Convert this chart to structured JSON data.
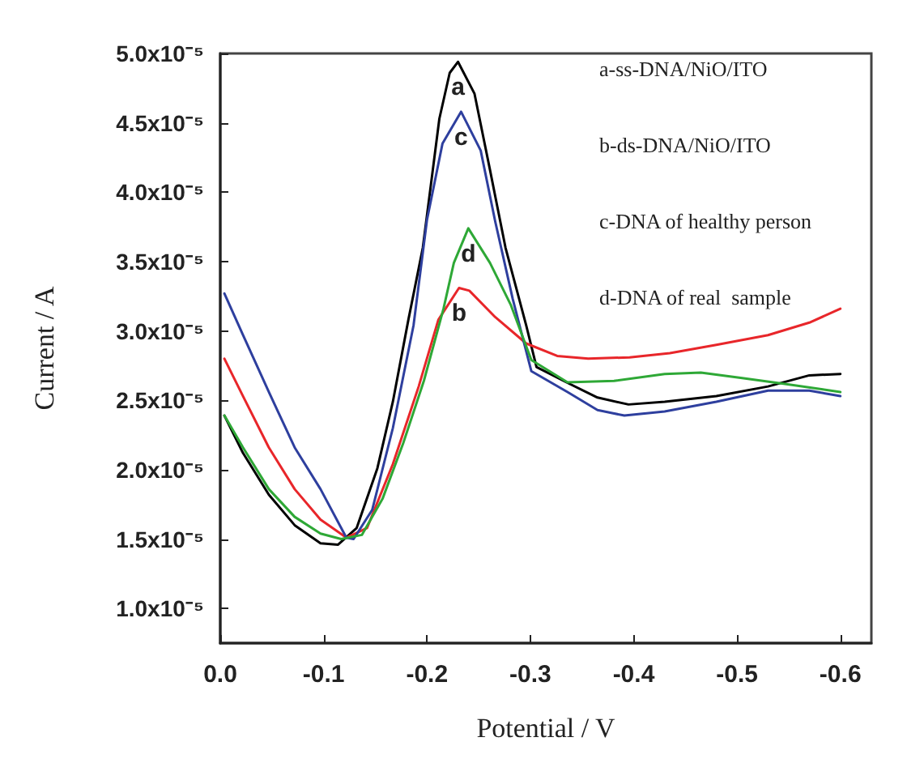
{
  "chart_data": {
    "type": "line",
    "xlabel": "Potential / V",
    "ylabel": "Current / A",
    "xlim": [
      0,
      -0.63
    ],
    "ylim": [
      7.5e-06,
      5e-05
    ],
    "xticks": [
      {
        "value": 0,
        "label": "0.0"
      },
      -0.1,
      -0.2,
      -0.3,
      -0.4,
      -0.5,
      -0.6
    ],
    "yticks": [
      {
        "value": 1e-05,
        "label": "1.0x10⁻⁵"
      },
      {
        "value": 1.5e-05,
        "label": "1.5x10⁻⁵"
      },
      {
        "value": 2e-05,
        "label": "2.0x10⁻⁵"
      },
      {
        "value": 2.5e-05,
        "label": "2.5x10⁻⁵"
      },
      {
        "value": 3e-05,
        "label": "3.0x10⁻⁵"
      },
      {
        "value": 3.5e-05,
        "label": "3.5x10⁻⁵"
      },
      {
        "value": 4e-05,
        "label": "4.0x10⁻⁵"
      },
      {
        "value": 4.5e-05,
        "label": "4.5x10⁻⁵"
      },
      {
        "value": 5e-05,
        "label": "5.0x10⁻⁵"
      }
    ],
    "grid": false,
    "marker": "none",
    "line_style": "solid",
    "series": [
      {
        "color": "#000000",
        "x": [
          -0.004,
          -0.022,
          -0.047,
          -0.072,
          -0.097,
          -0.114,
          -0.132,
          -0.152,
          -0.167,
          -0.182,
          -0.196,
          -0.212,
          -0.222,
          -0.23,
          -0.246,
          -0.261,
          -0.276,
          -0.296,
          -0.306,
          -0.335,
          -0.365,
          -0.395,
          -0.43,
          -0.48,
          -0.53,
          -0.57,
          -0.6
        ],
        "values": [
          2.39e-05,
          2.12e-05,
          1.82e-05,
          1.6e-05,
          1.47e-05,
          1.46e-05,
          1.58e-05,
          2.01e-05,
          2.49e-05,
          3.08e-05,
          3.6e-05,
          4.53e-05,
          4.86e-05,
          4.94e-05,
          4.71e-05,
          4.16e-05,
          3.6e-05,
          3.04e-05,
          2.74e-05,
          2.63e-05,
          2.52e-05,
          2.47e-05,
          2.49e-05,
          2.53e-05,
          2.6e-05,
          2.68e-05,
          2.69e-05
        ]
      },
      {
        "color": "#e8262a",
        "x": [
          -0.004,
          -0.022,
          -0.047,
          -0.072,
          -0.097,
          -0.122,
          -0.142,
          -0.167,
          -0.192,
          -0.211,
          -0.231,
          -0.241,
          -0.266,
          -0.296,
          -0.326,
          -0.356,
          -0.396,
          -0.435,
          -0.48,
          -0.53,
          -0.57,
          -0.6
        ],
        "values": [
          2.8e-05,
          2.53e-05,
          2.16e-05,
          1.86e-05,
          1.64e-05,
          1.51e-05,
          1.58e-05,
          2.04e-05,
          2.6e-05,
          3.08e-05,
          3.31e-05,
          3.29e-05,
          3.1e-05,
          2.91e-05,
          2.82e-05,
          2.8e-05,
          2.81e-05,
          2.84e-05,
          2.9e-05,
          2.97e-05,
          3.06e-05,
          3.16e-05
        ]
      },
      {
        "color": "#2e3f9e",
        "x": [
          -0.004,
          -0.022,
          -0.047,
          -0.072,
          -0.097,
          -0.122,
          -0.129,
          -0.147,
          -0.167,
          -0.187,
          -0.2,
          -0.215,
          -0.233,
          -0.252,
          -0.266,
          -0.283,
          -0.301,
          -0.336,
          -0.365,
          -0.391,
          -0.43,
          -0.48,
          -0.53,
          -0.57,
          -0.6
        ],
        "values": [
          3.27e-05,
          2.97e-05,
          2.56e-05,
          2.16e-05,
          1.86e-05,
          1.51e-05,
          1.5e-05,
          1.71e-05,
          2.3e-05,
          3.04e-05,
          3.8e-05,
          4.35e-05,
          4.58e-05,
          4.3e-05,
          3.79e-05,
          3.23e-05,
          2.71e-05,
          2.56e-05,
          2.43e-05,
          2.39e-05,
          2.42e-05,
          2.49e-05,
          2.57e-05,
          2.57e-05,
          2.53e-05
        ]
      },
      {
        "color": "#2ea836",
        "x": [
          -0.004,
          -0.022,
          -0.047,
          -0.072,
          -0.097,
          -0.117,
          -0.137,
          -0.157,
          -0.177,
          -0.197,
          -0.216,
          -0.226,
          -0.24,
          -0.261,
          -0.281,
          -0.301,
          -0.336,
          -0.381,
          -0.43,
          -0.465,
          -0.505,
          -0.545,
          -0.6
        ],
        "values": [
          2.39e-05,
          2.16e-05,
          1.86e-05,
          1.66e-05,
          1.54e-05,
          1.5e-05,
          1.53e-05,
          1.79e-05,
          2.19e-05,
          2.64e-05,
          3.16e-05,
          3.49e-05,
          3.74e-05,
          3.49e-05,
          3.19e-05,
          2.79e-05,
          2.63e-05,
          2.64e-05,
          2.69e-05,
          2.7e-05,
          2.66e-05,
          2.62e-05,
          2.56e-05
        ]
      }
    ],
    "annotations": [
      "a",
      "b",
      "c",
      "d",
      "a-ss-DNA/NiO/ITO",
      "b-ds-DNA/NiO/ITO",
      "c-DNA of healthy person",
      "d-DNA of real  sample"
    ]
  }
}
